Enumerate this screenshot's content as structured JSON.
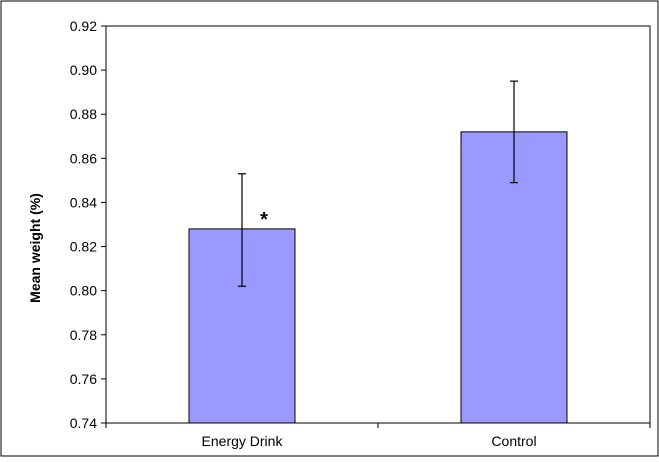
{
  "chart_data": {
    "type": "bar",
    "title": "",
    "xlabel": "",
    "ylabel": "Mean weight (%)",
    "categories": [
      "Energy Drink",
      "Control"
    ],
    "values": [
      0.828,
      0.872
    ],
    "error_upper": [
      0.853,
      0.895
    ],
    "error_lower": [
      0.802,
      0.849
    ],
    "annotations": [
      "*",
      ""
    ],
    "ylim": [
      0.74,
      0.92
    ],
    "yticks": [
      "0.74",
      "0.76",
      "0.78",
      "0.80",
      "0.82",
      "0.84",
      "0.86",
      "0.88",
      "0.90",
      "0.92"
    ],
    "grid": false,
    "legend": "none",
    "bar_color": "#9999ff"
  }
}
